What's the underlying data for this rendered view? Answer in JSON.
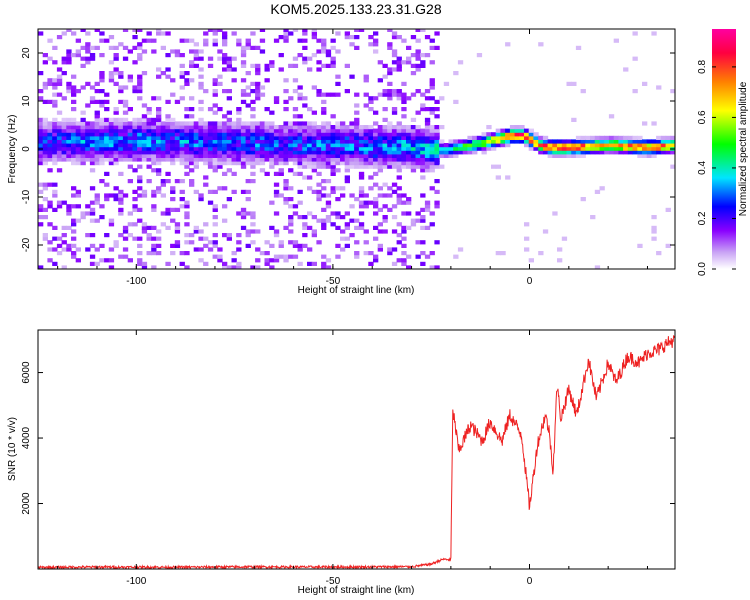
{
  "title": "KOM5.2025.133.23.31.G28",
  "chart_data": [
    {
      "type": "heatmap",
      "xlabel": "Height of straight line (km)",
      "ylabel": "Frequency (Hz)",
      "xlim": [
        -125,
        37
      ],
      "ylim": [
        -25,
        25
      ],
      "x_ticks": [
        -100,
        -50,
        0
      ],
      "y_ticks": [
        -20,
        -10,
        0,
        10,
        20
      ],
      "grid": false,
      "colorbar": {
        "label": "Normalized spectral amplitude",
        "range": [
          0,
          0.95
        ],
        "ticks": [
          0.0,
          0.2,
          0.4,
          0.6,
          0.8
        ],
        "colormap": [
          "#ffffff",
          "#c9a3f5",
          "#8a00ff",
          "#0000ff",
          "#00e5ff",
          "#00ff00",
          "#ffff00",
          "#ff8000",
          "#ff0040",
          "#ff00a0"
        ]
      },
      "ridge": {
        "x": [
          -125,
          -100,
          -75,
          -50,
          -30,
          -22,
          -15,
          -10,
          -5,
          -2,
          2,
          5,
          10,
          20,
          30,
          37
        ],
        "frequency": [
          1,
          1.5,
          1,
          0.5,
          0,
          -0.5,
          0.5,
          1.5,
          2.5,
          2.5,
          0.5,
          0,
          0,
          0.5,
          0,
          0.5
        ],
        "peak_amplitude": [
          0.3,
          0.32,
          0.3,
          0.3,
          0.35,
          0.4,
          0.55,
          0.65,
          0.9,
          0.9,
          0.8,
          0.85,
          0.9,
          0.75,
          0.88,
          0.7
        ]
      },
      "noise_region_x": [
        -125,
        -23
      ]
    },
    {
      "type": "line",
      "xlabel": "Height of straight line (km)",
      "ylabel": "SNR (10 * v/v)",
      "xlim": [
        -125,
        37
      ],
      "ylim": [
        0,
        7300
      ],
      "x_ticks": [
        -100,
        -50,
        0
      ],
      "y_ticks": [
        2000,
        4000,
        6000
      ],
      "grid": false,
      "series": [
        {
          "color": "#ee2222",
          "x": [
            -125,
            -110,
            -90,
            -70,
            -50,
            -30,
            -25,
            -22,
            -20,
            -19.5,
            -18,
            -15,
            -12,
            -10,
            -7,
            -5,
            -2,
            0,
            2,
            4,
            5,
            6,
            7,
            8,
            10,
            12,
            15,
            17,
            20,
            22,
            25,
            28,
            30,
            33,
            35,
            37
          ],
          "y": [
            50,
            60,
            55,
            65,
            60,
            70,
            150,
            300,
            280,
            4900,
            3600,
            4400,
            3900,
            4500,
            3900,
            4700,
            4100,
            1900,
            3800,
            4700,
            4200,
            3000,
            5600,
            4600,
            5500,
            4700,
            6400,
            5200,
            6300,
            5700,
            6500,
            6300,
            6600,
            6700,
            6900,
            7000
          ]
        }
      ]
    }
  ]
}
